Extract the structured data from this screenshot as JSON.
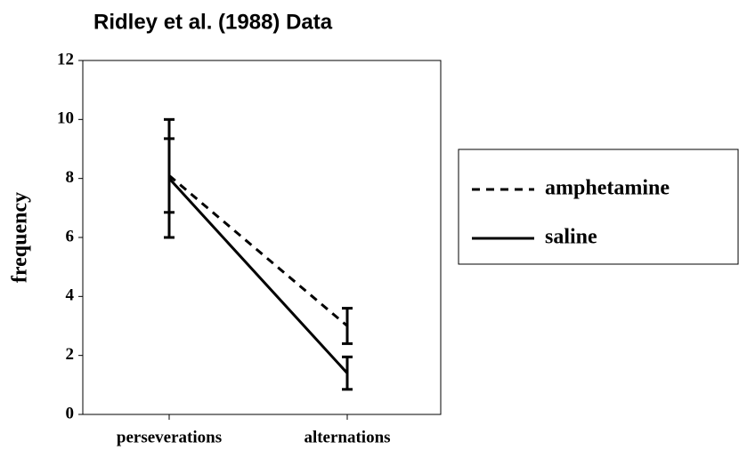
{
  "chart_data": {
    "type": "line",
    "title": "Ridley et al.  (1988) Data",
    "ylabel": "frequency",
    "categories": [
      "perseverations",
      "alternations"
    ],
    "series": [
      {
        "name": "amphetamine",
        "color": "#000000",
        "style": "dashed",
        "values": [
          8.1,
          3.0
        ],
        "errors": [
          1.25,
          0.6
        ]
      },
      {
        "name": "saline",
        "color": "#000000",
        "style": "solid",
        "values": [
          8.0,
          1.4
        ],
        "errors": [
          2.0,
          0.55
        ]
      }
    ],
    "ylim": [
      0,
      12
    ],
    "yticks": [
      0,
      2,
      4,
      6,
      8,
      10,
      12
    ],
    "legend": "right"
  }
}
